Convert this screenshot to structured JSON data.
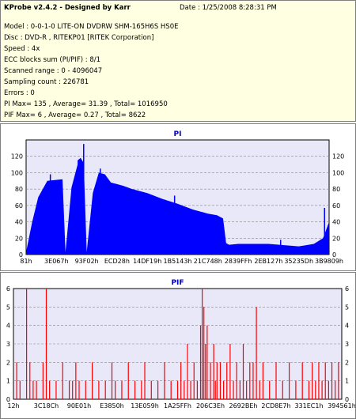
{
  "info": {
    "title": "KProbe v2.4.2 - Designed by Karr",
    "date": "Date : 1/25/2008 8:28:31 PM",
    "lines": [
      "Model : 0-0-1-0 LITE-ON DVDRW SHM-165H6S HS0E",
      "Disc : DVD-R , RITEKP01 [RITEK Corporation]",
      "Speed : 4x",
      "ECC blocks sum (PI/PIF) : 8/1",
      "Scanned range : 0 - 4096047",
      "Sampling count : 226781",
      "Errors : 0",
      "PI Max= 135 , Average= 31.39 , Total= 1016950",
      "PIF Max= 6 , Average= 0.27 , Total= 8622"
    ]
  },
  "chart_data": [
    {
      "type": "area",
      "title": "PI",
      "ylim": [
        0,
        140
      ],
      "yticks": [
        0,
        20,
        40,
        60,
        80,
        100,
        120
      ],
      "grid": true,
      "color": "#0000ff",
      "categories": [
        "81h",
        "3E067h",
        "93F02h",
        "ECD28h",
        "14DF19h",
        "1B5143h",
        "21C748h",
        "2839FFh",
        "2EB127h",
        "35235Dh",
        "3B9809h"
      ],
      "x": [
        0,
        0.02,
        0.04,
        0.07,
        0.12,
        0.13,
        0.15,
        0.17,
        0.17,
        0.18,
        0.19,
        0.2,
        0.22,
        0.24,
        0.26,
        0.28,
        0.3,
        0.32,
        0.35,
        0.4,
        0.45,
        0.5,
        0.55,
        0.6,
        0.63,
        0.65,
        0.66,
        0.67,
        0.7,
        0.8,
        0.9,
        0.95,
        0.98,
        1.0
      ],
      "values": [
        3,
        40,
        70,
        90,
        92,
        3,
        82,
        110,
        115,
        118,
        112,
        3,
        75,
        100,
        98,
        88,
        86,
        84,
        80,
        75,
        68,
        62,
        55,
        50,
        48,
        44,
        14,
        12,
        13,
        13,
        10,
        13,
        20,
        40
      ],
      "peaks": [
        [
          0.08,
          98
        ],
        [
          0.19,
          135
        ],
        [
          0.245,
          105
        ],
        [
          0.49,
          72
        ],
        [
          0.84,
          18
        ],
        [
          0.985,
          57
        ]
      ]
    },
    {
      "type": "bar",
      "title": "PIF",
      "ylim": [
        0,
        6
      ],
      "yticks": [
        0,
        1,
        2,
        3,
        4,
        5,
        6
      ],
      "grid": true,
      "color": "#ff0000",
      "categories": [
        "12h",
        "3C18Ch",
        "90E01h",
        "E3850h",
        "13E059h",
        "1A25FFh",
        "206C3Eh",
        "2692BEh",
        "2CD8E7h",
        "331EC1h",
        "394561h"
      ],
      "spikes": [
        [
          0.01,
          2
        ],
        [
          0.02,
          1
        ],
        [
          0.04,
          6
        ],
        [
          0.05,
          2
        ],
        [
          0.06,
          1
        ],
        [
          0.07,
          1
        ],
        [
          0.09,
          2
        ],
        [
          0.1,
          6
        ],
        [
          0.11,
          1
        ],
        [
          0.13,
          1
        ],
        [
          0.15,
          2
        ],
        [
          0.17,
          1
        ],
        [
          0.18,
          1
        ],
        [
          0.19,
          2
        ],
        [
          0.2,
          1
        ],
        [
          0.22,
          1
        ],
        [
          0.24,
          2
        ],
        [
          0.26,
          1
        ],
        [
          0.28,
          1
        ],
        [
          0.3,
          2
        ],
        [
          0.31,
          1
        ],
        [
          0.33,
          1
        ],
        [
          0.35,
          2
        ],
        [
          0.37,
          1
        ],
        [
          0.39,
          1
        ],
        [
          0.4,
          2
        ],
        [
          0.42,
          1
        ],
        [
          0.44,
          1
        ],
        [
          0.46,
          2
        ],
        [
          0.48,
          1
        ],
        [
          0.5,
          1
        ],
        [
          0.51,
          2
        ],
        [
          0.52,
          1
        ],
        [
          0.53,
          3
        ],
        [
          0.54,
          1
        ],
        [
          0.55,
          2
        ],
        [
          0.56,
          1
        ],
        [
          0.57,
          4
        ],
        [
          0.575,
          6
        ],
        [
          0.58,
          5
        ],
        [
          0.585,
          3
        ],
        [
          0.59,
          4
        ],
        [
          0.6,
          2
        ],
        [
          0.61,
          3
        ],
        [
          0.615,
          1
        ],
        [
          0.62,
          2
        ],
        [
          0.63,
          2
        ],
        [
          0.64,
          1
        ],
        [
          0.65,
          2
        ],
        [
          0.66,
          3
        ],
        [
          0.67,
          1
        ],
        [
          0.68,
          2
        ],
        [
          0.69,
          1
        ],
        [
          0.7,
          3
        ],
        [
          0.71,
          1
        ],
        [
          0.72,
          2
        ],
        [
          0.73,
          2
        ],
        [
          0.74,
          5
        ],
        [
          0.75,
          1
        ],
        [
          0.76,
          2
        ],
        [
          0.78,
          1
        ],
        [
          0.8,
          2
        ],
        [
          0.82,
          1
        ],
        [
          0.84,
          2
        ],
        [
          0.86,
          1
        ],
        [
          0.88,
          2
        ],
        [
          0.9,
          1
        ],
        [
          0.91,
          2
        ],
        [
          0.92,
          1
        ],
        [
          0.93,
          2
        ],
        [
          0.94,
          1
        ],
        [
          0.95,
          2
        ],
        [
          0.96,
          1
        ],
        [
          0.97,
          2
        ],
        [
          0.98,
          1
        ],
        [
          0.99,
          2
        ]
      ]
    }
  ]
}
